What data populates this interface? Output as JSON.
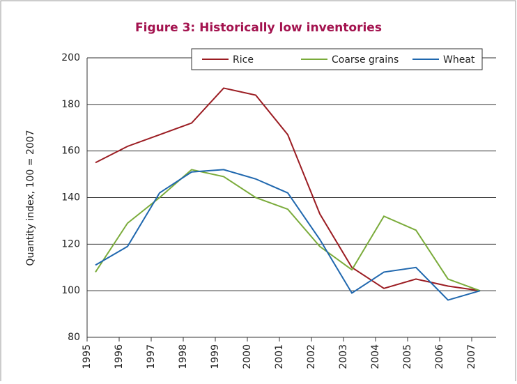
{
  "chart_data": {
    "type": "line",
    "title": "Figure 3: Historically low inventories",
    "y_label": "Quantity index, 100 = 2007",
    "categories": [
      "1995",
      "1996",
      "1997",
      "1998",
      "1999",
      "2000",
      "2001",
      "2002",
      "2003",
      "2004",
      "2005",
      "2006",
      "2007"
    ],
    "series": [
      {
        "name": "Rice",
        "color": "#9b1c22",
        "values": [
          155,
          162,
          167,
          172,
          187,
          184,
          167,
          133,
          110,
          101,
          105,
          102,
          100
        ]
      },
      {
        "name": "Coarse grains",
        "color": "#7aab3a",
        "values": [
          108,
          129,
          140,
          152,
          149,
          140,
          135,
          119,
          109,
          132,
          126,
          105,
          100
        ]
      },
      {
        "name": "Wheat",
        "color": "#1f67ae",
        "values": [
          111,
          119,
          142,
          151,
          152,
          148,
          142,
          122,
          99,
          108,
          110,
          96,
          100
        ]
      }
    ],
    "ylim": [
      80,
      200
    ],
    "yticks": [
      80,
      100,
      120,
      140,
      160,
      180,
      200
    ],
    "grid": true,
    "legend": "top"
  }
}
